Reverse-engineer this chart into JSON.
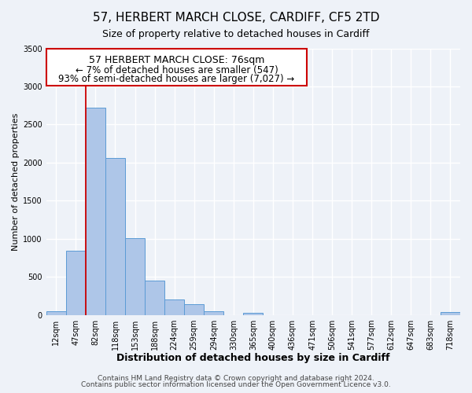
{
  "title": "57, HERBERT MARCH CLOSE, CARDIFF, CF5 2TD",
  "subtitle": "Size of property relative to detached houses in Cardiff",
  "xlabel": "Distribution of detached houses by size in Cardiff",
  "ylabel": "Number of detached properties",
  "bin_labels": [
    "12sqm",
    "47sqm",
    "82sqm",
    "118sqm",
    "153sqm",
    "188sqm",
    "224sqm",
    "259sqm",
    "294sqm",
    "330sqm",
    "365sqm",
    "400sqm",
    "436sqm",
    "471sqm",
    "506sqm",
    "541sqm",
    "577sqm",
    "612sqm",
    "647sqm",
    "683sqm",
    "718sqm"
  ],
  "bar_values": [
    55,
    850,
    2720,
    2060,
    1010,
    455,
    210,
    145,
    55,
    0,
    30,
    0,
    0,
    0,
    0,
    0,
    0,
    0,
    0,
    0,
    40
  ],
  "bar_color": "#aec6e8",
  "bar_edge_color": "#5b9bd5",
  "vline_index": 2,
  "annotation_title": "57 HERBERT MARCH CLOSE: 76sqm",
  "annotation_line1": "← 7% of detached houses are smaller (547)",
  "annotation_line2": "93% of semi-detached houses are larger (7,027) →",
  "vline_color": "#cc0000",
  "box_edge_color": "#cc0000",
  "ylim": [
    0,
    3500
  ],
  "footer1": "Contains HM Land Registry data © Crown copyright and database right 2024.",
  "footer2": "Contains public sector information licensed under the Open Government Licence v3.0.",
  "background_color": "#eef2f8",
  "grid_color": "#ffffff",
  "title_fontsize": 11,
  "subtitle_fontsize": 9,
  "xlabel_fontsize": 9,
  "ylabel_fontsize": 8,
  "tick_fontsize": 7,
  "annotation_title_fontsize": 9,
  "annotation_fontsize": 8.5,
  "footer_fontsize": 6.5
}
